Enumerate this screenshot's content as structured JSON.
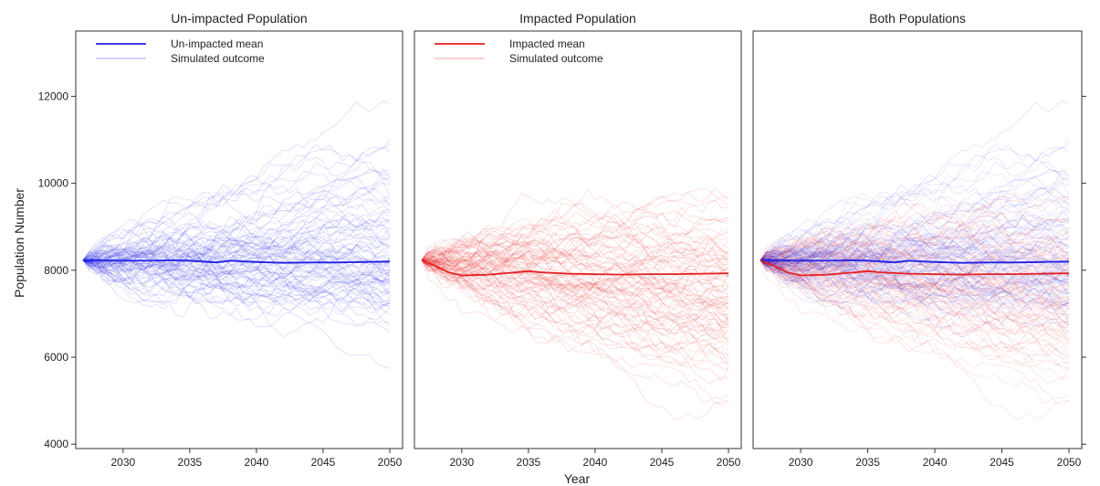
{
  "figure": {
    "xlabel": "Year",
    "ylabel": "Population Number"
  },
  "colors": {
    "unimpacted": "#1f1fe6",
    "impacted": "#e61f1f",
    "frame": "#333333"
  },
  "chart_data": [
    {
      "type": "line",
      "title": "Un-impacted Population",
      "xlabel": "Year",
      "ylabel": "Population Number",
      "xlim": [
        2027,
        2050
      ],
      "ylim": [
        3900,
        13500
      ],
      "x_ticks": [
        2030,
        2035,
        2040,
        2045,
        2050
      ],
      "y_ticks": [
        4000,
        6000,
        8000,
        10000,
        12000
      ],
      "legend": {
        "position": "top-left",
        "entries": [
          "Un-impacted mean",
          "Simulated outcome"
        ]
      },
      "series": [
        {
          "name": "Un-impacted mean",
          "color": "#1f1fe6",
          "x": [
            2027,
            2028,
            2030,
            2032,
            2034,
            2035,
            2036,
            2037,
            2038,
            2040,
            2042,
            2044,
            2046,
            2048,
            2050
          ],
          "values": [
            8230,
            8230,
            8220,
            8220,
            8230,
            8220,
            8200,
            8180,
            8220,
            8190,
            8170,
            8180,
            8180,
            8190,
            8200
          ]
        },
        {
          "name": "Simulated outcome",
          "color": "#1f1fe6",
          "description": "many stochastic trajectories from ~8200 in 2027 fanning out to ~5400–11200 by 2050"
        }
      ]
    },
    {
      "type": "line",
      "title": "Impacted Population",
      "xlabel": "Year",
      "ylabel": "",
      "xlim": [
        2027,
        2050
      ],
      "ylim": [
        3900,
        13500
      ],
      "x_ticks": [
        2030,
        2035,
        2040,
        2045,
        2050
      ],
      "y_ticks": [
        4000,
        6000,
        8000,
        10000,
        12000
      ],
      "legend": {
        "position": "top-left",
        "entries": [
          "Impacted mean",
          "Simulated outcome"
        ]
      },
      "series": [
        {
          "name": "Impacted mean",
          "color": "#e61f1f",
          "x": [
            2027,
            2028,
            2029,
            2030,
            2032,
            2034,
            2035,
            2036,
            2038,
            2040,
            2042,
            2044,
            2046,
            2048,
            2050
          ],
          "values": [
            8230,
            8100,
            7950,
            7880,
            7900,
            7950,
            7980,
            7950,
            7920,
            7910,
            7900,
            7910,
            7910,
            7920,
            7930
          ]
        },
        {
          "name": "Simulated outcome",
          "color": "#e61f1f",
          "description": "many stochastic trajectories from ~8200 in 2027 fanning out to ~4900–11000 by 2050"
        }
      ]
    },
    {
      "type": "line",
      "title": "Both Populations",
      "xlabel": "Year",
      "ylabel": "",
      "xlim": [
        2027,
        2050
      ],
      "ylim": [
        3900,
        13500
      ],
      "x_ticks": [
        2030,
        2035,
        2040,
        2045,
        2050
      ],
      "y_ticks": [
        4000,
        6000,
        8000,
        10000,
        12000
      ],
      "legend": null,
      "series": [
        {
          "name": "Un-impacted mean",
          "color": "#1f1fe6",
          "x": [
            2027,
            2028,
            2030,
            2032,
            2034,
            2035,
            2036,
            2037,
            2038,
            2040,
            2042,
            2044,
            2046,
            2048,
            2050
          ],
          "values": [
            8230,
            8230,
            8220,
            8220,
            8230,
            8220,
            8200,
            8180,
            8220,
            8190,
            8170,
            8180,
            8180,
            8190,
            8200
          ]
        },
        {
          "name": "Impacted mean",
          "color": "#e61f1f",
          "x": [
            2027,
            2028,
            2029,
            2030,
            2032,
            2034,
            2035,
            2036,
            2038,
            2040,
            2042,
            2044,
            2046,
            2048,
            2050
          ],
          "values": [
            8230,
            8100,
            7950,
            7880,
            7900,
            7950,
            7980,
            7950,
            7920,
            7910,
            7900,
            7910,
            7910,
            7920,
            7930
          ]
        },
        {
          "name": "Simulated outcome",
          "color": "#7a2aa8",
          "description": "overlay of both un-impacted and impacted simulated trajectories"
        }
      ]
    }
  ]
}
